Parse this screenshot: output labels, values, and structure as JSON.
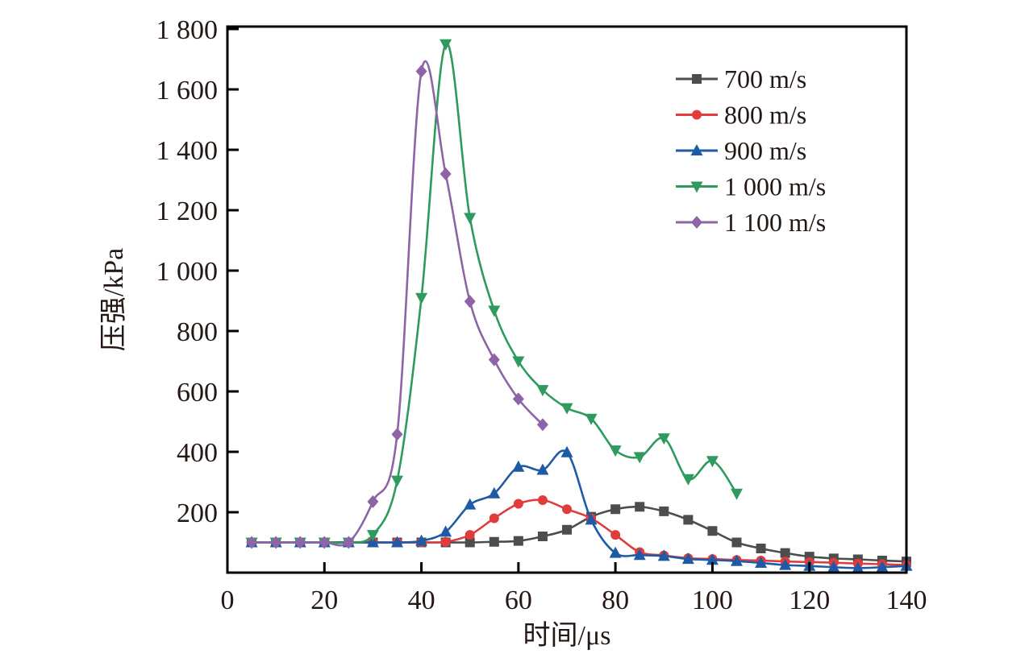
{
  "chart_data": {
    "type": "line",
    "title": "",
    "xlabel": "时间/μs",
    "ylabel": "压强/kPa",
    "xlim": [
      0,
      140
    ],
    "ylim": [
      0,
      1800
    ],
    "x_ticks": [
      0,
      20,
      40,
      60,
      80,
      100,
      120,
      140
    ],
    "x_tick_labels": [
      "0",
      "20",
      "40",
      "60",
      "80",
      "100",
      "120",
      "140"
    ],
    "y_ticks": [
      200,
      400,
      600,
      800,
      1000,
      1200,
      1400,
      1600,
      1800
    ],
    "y_tick_labels": [
      "200",
      "400",
      "600",
      "800",
      "1 000",
      "1 200",
      "1 400",
      "1 600",
      "1 800"
    ],
    "grid": false,
    "legend_position": "top-right",
    "series": [
      {
        "name": "700 m/s",
        "color": "#4d4d4d",
        "marker": "square",
        "x": [
          5,
          10,
          15,
          20,
          25,
          30,
          35,
          40,
          45,
          50,
          55,
          60,
          65,
          70,
          75,
          80,
          85,
          90,
          95,
          100,
          105,
          110,
          115,
          120,
          125,
          130,
          135,
          140
        ],
        "y": [
          100,
          100,
          100,
          100,
          100,
          100,
          100,
          100,
          100,
          100,
          102,
          105,
          120,
          142,
          185,
          210,
          218,
          203,
          175,
          138,
          100,
          80,
          65,
          53,
          47,
          44,
          40,
          37
        ]
      },
      {
        "name": "800 m/s",
        "color": "#e03c3c",
        "marker": "circle",
        "x": [
          5,
          10,
          15,
          20,
          25,
          30,
          35,
          40,
          45,
          50,
          55,
          60,
          65,
          70,
          75,
          80,
          85,
          90,
          95,
          100,
          105,
          110,
          115,
          120,
          125,
          130,
          135,
          140
        ],
        "y": [
          100,
          100,
          100,
          100,
          100,
          100,
          100,
          100,
          102,
          125,
          180,
          228,
          240,
          210,
          180,
          125,
          68,
          57,
          48,
          45,
          42,
          40,
          37,
          35,
          33,
          30,
          28,
          25
        ]
      },
      {
        "name": "900 m/s",
        "color": "#1f5aa6",
        "marker": "triangle-up",
        "x": [
          5,
          10,
          15,
          20,
          25,
          30,
          35,
          40,
          45,
          50,
          55,
          60,
          65,
          70,
          75,
          80,
          85,
          90,
          95,
          100,
          105,
          110,
          115,
          120,
          125,
          130,
          135,
          140
        ],
        "y": [
          100,
          100,
          100,
          100,
          100,
          100,
          100,
          105,
          135,
          225,
          262,
          350,
          340,
          398,
          175,
          65,
          58,
          55,
          45,
          42,
          38,
          32,
          25,
          22,
          18,
          15,
          18,
          22
        ]
      },
      {
        "name": "1 000 m/s",
        "color": "#2e9a5e",
        "marker": "triangle-down",
        "x": [
          5,
          10,
          15,
          20,
          25,
          30,
          35,
          40,
          45,
          50,
          55,
          60,
          65,
          70,
          75,
          80,
          85,
          90,
          95,
          100,
          105
        ],
        "y": [
          100,
          100,
          100,
          100,
          100,
          125,
          305,
          910,
          1750,
          1175,
          868,
          700,
          605,
          545,
          510,
          405,
          383,
          445,
          310,
          370,
          262
        ]
      },
      {
        "name": "1 100 m/s",
        "color": "#8f63a8",
        "marker": "diamond",
        "x": [
          5,
          10,
          15,
          20,
          25,
          30,
          35,
          40,
          45,
          50,
          55,
          60,
          65
        ],
        "y": [
          100,
          100,
          100,
          100,
          100,
          235,
          458,
          1660,
          1320,
          898,
          705,
          575,
          490
        ]
      }
    ]
  }
}
